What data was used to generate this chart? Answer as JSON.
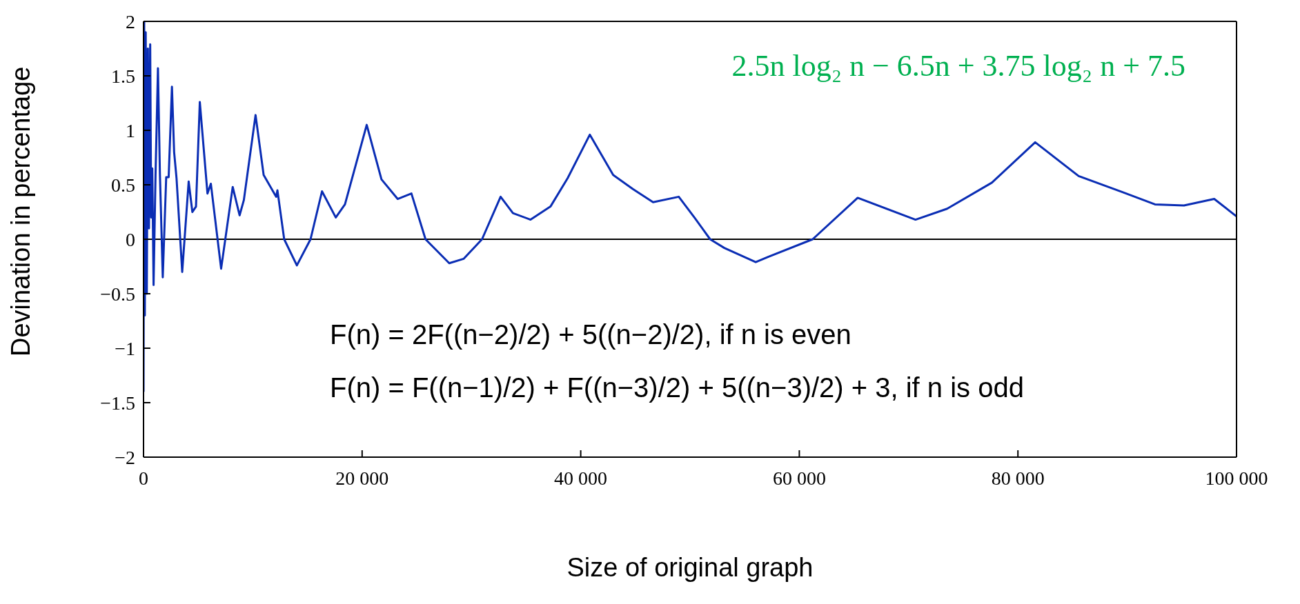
{
  "chart_data": {
    "type": "line",
    "xlabel": "Size of original graph",
    "ylabel": "Devination in percentage",
    "annotations": [
      "2.5n log₂ n − 6.5n + 3.75 log₂ n + 7.5",
      "F(n) = 2F((n−2)/2) + 5((n−2)/2), if n is even",
      "F(n) = F((n−1)/2) + F((n−3)/2) + 5((n−3)/2) + 3, if n is odd"
    ],
    "x": [
      0,
      60,
      120,
      200,
      300,
      400,
      500,
      610,
      700,
      800,
      920,
      1100,
      1320,
      1500,
      1760,
      2075,
      2300,
      2600,
      2800,
      3020,
      3540,
      4130,
      4470,
      4800,
      5150,
      5850,
      6160,
      7100,
      8160,
      8790,
      9180,
      10250,
      10990,
      12140,
      12250,
      12870,
      14030,
      15280,
      16330,
      17590,
      18430,
      20420,
      21770,
      23250,
      24510,
      25800,
      27970,
      29280,
      30970,
      32670,
      33800,
      35410,
      37230,
      38800,
      40830,
      42970,
      44780,
      46620,
      48970,
      50400,
      51840,
      53140,
      56010,
      57180,
      61220,
      65340,
      70630,
      73520,
      77620,
      81580,
      85560,
      89650,
      92540,
      95190,
      97960,
      100000
    ],
    "values": [
      -1.4,
      2.0,
      -0.7,
      1.9,
      -0.5,
      1.75,
      0.1,
      1.79,
      0.2,
      0.65,
      -0.42,
      0.6,
      1.57,
      0.6,
      -0.35,
      0.57,
      0.57,
      1.4,
      0.8,
      0.56,
      -0.3,
      0.53,
      0.25,
      0.3,
      1.26,
      0.42,
      0.51,
      -0.27,
      0.48,
      0.22,
      0.36,
      1.14,
      0.59,
      0.39,
      0.45,
      0,
      -0.24,
      0,
      0.44,
      0.2,
      0.32,
      1.05,
      0.55,
      0.37,
      0.42,
      0,
      -0.22,
      -0.18,
      0,
      0.39,
      0.24,
      0.18,
      0.3,
      0.56,
      0.96,
      0.59,
      0.46,
      0.34,
      0.39,
      0.2,
      0,
      -0.08,
      -0.21,
      -0.16,
      0,
      0.38,
      0.18,
      0.28,
      0.52,
      0.89,
      0.58,
      0.43,
      0.32,
      0.31,
      0.37,
      0.21
    ],
    "color": "#0a2db4",
    "xlim": [
      0,
      100000
    ],
    "xticks": [
      0,
      {
        "value": 20000,
        "label": "20 000"
      },
      {
        "value": 40000,
        "label": "40 000"
      },
      {
        "value": 60000,
        "label": "60 000"
      },
      {
        "value": 80000,
        "label": "80 000"
      },
      {
        "value": 100000,
        "label": "100 000"
      }
    ],
    "ylim": [
      -2,
      2
    ],
    "yticks": [
      {
        "value": -2,
        "label": "−2"
      },
      {
        "value": -1.5,
        "label": "−1.5"
      },
      {
        "value": -1,
        "label": "−1"
      },
      {
        "value": -0.5,
        "label": "−0.5"
      },
      0,
      0.5,
      1,
      1.5,
      2
    ],
    "ref_lines": [
      {
        "axis": "y",
        "value": 0,
        "color": "#000000"
      }
    ]
  }
}
